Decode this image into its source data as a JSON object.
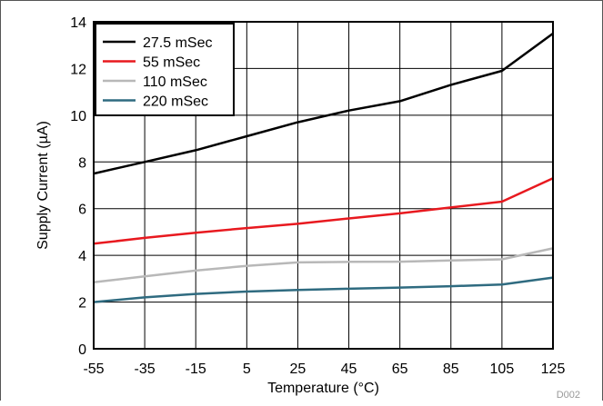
{
  "chart_data": {
    "type": "line",
    "title": "",
    "xlabel": "Temperature (°C)",
    "ylabel": "Supply Current (µA)",
    "xlim": [
      -55,
      125
    ],
    "ylim": [
      0,
      14
    ],
    "x_ticks": [
      -55,
      -35,
      -15,
      5,
      25,
      45,
      65,
      85,
      105,
      125
    ],
    "y_ticks": [
      0,
      2,
      4,
      6,
      8,
      10,
      12,
      14
    ],
    "grid": true,
    "legend_position": "top-left",
    "figure_id": "D002",
    "series": [
      {
        "name": "27.5 mSec",
        "color": "#000000",
        "x": [
          -55,
          -35,
          -15,
          5,
          25,
          45,
          65,
          85,
          105,
          125
        ],
        "values": [
          7.5,
          8.0,
          8.5,
          9.1,
          9.7,
          10.2,
          10.6,
          11.3,
          11.9,
          13.5
        ]
      },
      {
        "name": "55 mSec",
        "color": "#e8191f",
        "x": [
          -55,
          -35,
          -15,
          5,
          25,
          45,
          65,
          85,
          105,
          125
        ],
        "values": [
          4.5,
          4.75,
          4.97,
          5.17,
          5.35,
          5.58,
          5.8,
          6.05,
          6.3,
          7.3
        ]
      },
      {
        "name": "110 mSec",
        "color": "#b8b8b8",
        "x": [
          -55,
          -35,
          -15,
          5,
          25,
          45,
          65,
          85,
          105,
          125
        ],
        "values": [
          2.85,
          3.1,
          3.35,
          3.55,
          3.7,
          3.72,
          3.73,
          3.78,
          3.83,
          4.3
        ]
      },
      {
        "name": "220 mSec",
        "color": "#2f6b80",
        "x": [
          -55,
          -35,
          -15,
          5,
          25,
          45,
          65,
          85,
          105,
          125
        ],
        "values": [
          2.0,
          2.2,
          2.35,
          2.45,
          2.52,
          2.57,
          2.62,
          2.68,
          2.75,
          3.05
        ]
      }
    ]
  }
}
